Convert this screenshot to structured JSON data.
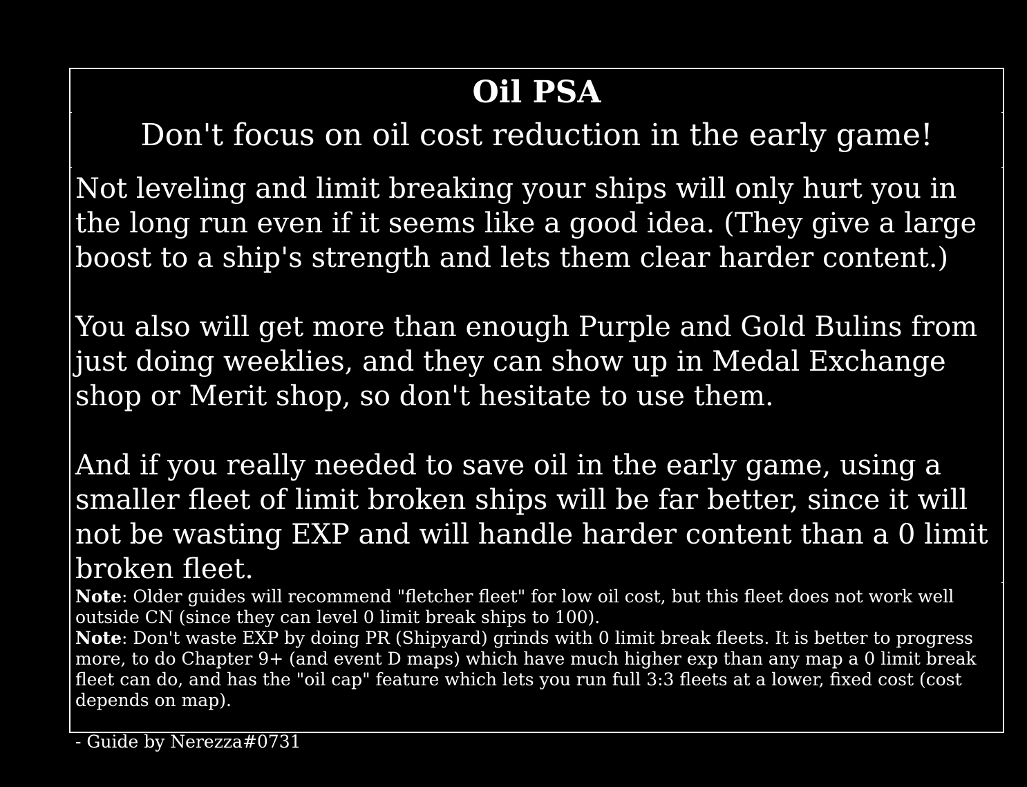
{
  "title": "Oil PSA",
  "subtitle": "Don't focus on oil cost reduction in the early game!",
  "paragraphs": [
    "Not leveling and limit breaking your ships will only hurt you in the long run even if it seems like a good idea. (They give a large boost to a ship's strength and lets them clear harder content.)",
    "You also will get more than enough Purple and Gold Bulins from just doing weeklies, and they can show up in Medal Exchange shop or Merit shop, so don't hesitate to use them.",
    "And if you really needed to save oil in the early game, using a smaller fleet of limit broken ships will be far better, since it will not be wasting EXP and will handle harder content than a 0 limit broken fleet."
  ],
  "notes": [
    {
      "label": "Note",
      "text": ": Older guides will recommend \"fletcher fleet\" for low oil cost, but this fleet does not work well outside CN (since they can level 0 limit break ships to 100)."
    },
    {
      "label": "Note",
      "text": ": Don't waste EXP by doing PR (Shipyard) grinds with 0 limit break fleets. It is better to progress more, to do Chapter 9+ (and event D maps) which have much higher exp than any map a 0 limit break fleet can do, and has the \"oil cap\" feature which lets you run full 3:3 fleets at a lower, fixed cost (cost depends on map)."
    }
  ],
  "credit": "- Guide by Nerezza#0731",
  "colors": {
    "background": "#000000",
    "text": "#ffffff",
    "border": "#ffffff"
  }
}
